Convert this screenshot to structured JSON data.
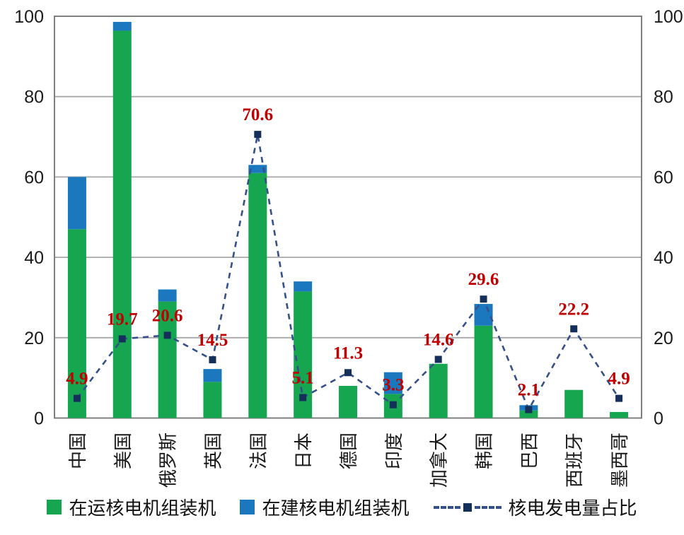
{
  "chart_data": {
    "type": "bar",
    "subtype": "stacked-bars-with-line-overlay",
    "categories": [
      "中国",
      "美国",
      "俄罗斯",
      "英国",
      "法国",
      "日本",
      "德国",
      "印度",
      "加拿大",
      "韩国",
      "巴西",
      "西班牙",
      "墨西哥"
    ],
    "bar_series": [
      {
        "name": "在运核电机组装机",
        "color": "#17A650",
        "values": [
          47,
          96.4,
          29,
          9,
          61,
          31.5,
          8,
          6,
          13.5,
          23,
          1.9,
          7,
          1.5
        ]
      },
      {
        "name": "在建核电机组装机",
        "color": "#1B78BE",
        "values": [
          13,
          2.2,
          3,
          3.2,
          2,
          2.5,
          0,
          5.4,
          0,
          5.4,
          1.3,
          0,
          0
        ]
      }
    ],
    "line_series": {
      "name": "核电发电量占比",
      "line_color": "#35508A",
      "marker_color": "#152F5B",
      "label_color": "#C00000",
      "values": [
        4.9,
        19.7,
        20.6,
        14.5,
        70.6,
        5.1,
        11.3,
        3.3,
        14.6,
        29.6,
        2.1,
        22.2,
        4.9
      ]
    },
    "y_axis": {
      "min": 0,
      "max": 100,
      "ticks": [
        0,
        20,
        40,
        60,
        80,
        100
      ],
      "sides": [
        "left",
        "right"
      ]
    },
    "grid": true,
    "legend_position": "bottom",
    "colors": {
      "grid": "#A8A8A8",
      "border": "#7F7F7F",
      "axis_text": "#1A1A1A"
    },
    "title": "",
    "xlabel": "",
    "ylabel": ""
  }
}
